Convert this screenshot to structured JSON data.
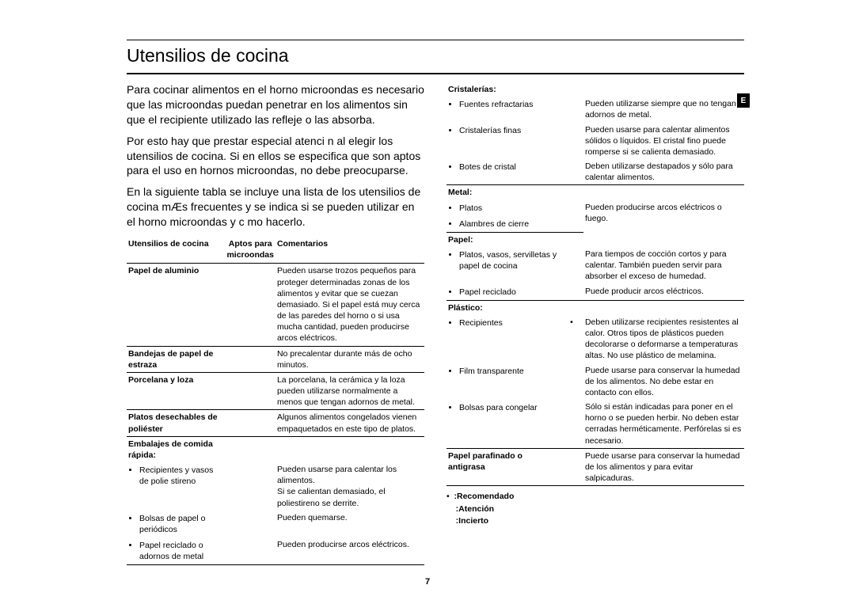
{
  "title": "Utensilios de cocina",
  "page_number": "7",
  "tab_letter": "E",
  "intro": {
    "p1": "Para cocinar alimentos en el horno microondas es necesario que las microondas puedan penetrar en los alimentos sin que el recipiente utilizado las refleje o las absorba.",
    "p2": "Por esto hay que prestar especial atenci n al elegir los utensilios de cocina. Si en ellos se especifica que son aptos para el uso en hornos microondas, no debe preocuparse.",
    "p3": "En la siguiente tabla se incluye una lista de los utensilios de cocina mÆs frecuentes y se indica si se pueden utilizar en el horno microondas y c mo hacerlo."
  },
  "table_head": {
    "c1": "Utensilios de cocina",
    "c2": "Aptos para microondas",
    "c3": "Comentarios"
  },
  "left_rows": {
    "r1_label": "Papel de aluminio",
    "r1_comment": "Pueden usarse trozos pequeños para proteger determinadas zonas de los alimentos y evitar que se cuezan demasiado. Si el papel está muy cerca de las paredes del horno o si usa mucha cantidad, pueden producirse arcos eléctricos.",
    "r2_label": "Bandejas de papel de estraza",
    "r2_comment": "No precalentar durante más de ocho minutos.",
    "r3_label": "Porcelana y loza",
    "r3_comment": "La porcelana, la cerámica y la loza pueden utilizarse normalmente a menos que tengan adornos de metal.",
    "r4_label": "Platos desechables de poliéster",
    "r4_comment": "Algunos alimentos congelados vienen empaquetados en este tipo de platos.",
    "r5_label": "Embalajes de comida rápida:",
    "r5_1_label": "Recipientes y vasos de polie stireno",
    "r5_1_comment": "Pueden usarse para calentar los alimentos.",
    "r5_1b_comment": "Si se calientan demasiado, el poliestireno se derrite.",
    "r5_2_label": "Bolsas de papel o periódicos",
    "r5_2_comment": "Pueden quemarse.",
    "r5_3_label": "Papel reciclado o adornos de metal",
    "r5_3_comment": "Pueden producirse arcos eléctricos."
  },
  "right_rows": {
    "crist_label": "Cristalerías:",
    "crist_1_label": "Fuentes refractarias",
    "crist_1_comment": "Pueden utilizarse siempre que no tengan adornos de metal.",
    "crist_2_label": "Cristalerías finas",
    "crist_2_comment": "Pueden usarse para calentar alimentos sólidos o líquidos. El cristal fino puede romperse si se calienta demasiado.",
    "crist_3_label": "Botes de cristal",
    "crist_3_comment": "Deben utilizarse destapados y sólo para calentar alimentos.",
    "metal_label": "Metal:",
    "metal_1_label": "Platos",
    "metal_1_comment": "Pueden producirse arcos eléctricos o fuego.",
    "metal_2_label": "Alambres de cierre",
    "papel_label": "Papel:",
    "papel_1_label": "Platos, vasos, servilletas y papel de cocina",
    "papel_1_comment": "Para tiempos de cocción cortos y para calentar. También pueden servir para absorber el exceso de humedad.",
    "papel_2_label": "Papel reciclado",
    "papel_2_comment": "Puede producir arcos eléctricos.",
    "plast_label": "Plástico:",
    "plast_1_label": "Recipientes",
    "plast_1_comment": "Deben utilizarse recipientes resistentes al calor. Otros tipos de plásticos pueden decolorarse o deformarse a temperaturas altas. No use plástico de melamina.",
    "plast_2_label": "Film transparente",
    "plast_2_comment": "Puede usarse para conservar la humedad de los alimentos. No debe estar en contacto con ellos.",
    "plast_3_label": "Bolsas para congelar",
    "plast_3_comment": "Sólo si están indicadas para poner en el horno o se pueden herbir. No deben estar cerradas herméticamente. Perfórelas si es necesario.",
    "paraf_label": "Papel parafinado o antigrasa",
    "paraf_comment": "Puede usarse para conservar la humedad de los alimentos y para evitar salpicaduras."
  },
  "legend": {
    "rec": ":Recomendado",
    "aten": ":Atención",
    "inc": ":Incierto"
  }
}
